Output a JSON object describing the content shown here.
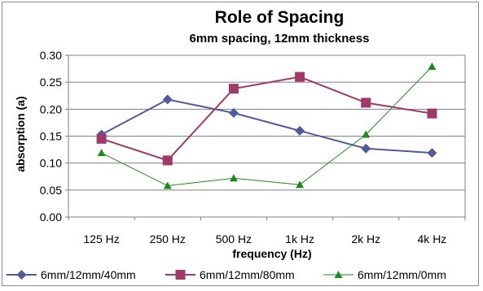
{
  "chart_data": {
    "type": "line",
    "title": "Role of Spacing",
    "subtitle": "6mm spacing, 12mm thickness",
    "xlabel": "frequency (Hz)",
    "ylabel": "absorption (a)",
    "categories": [
      "125 Hz",
      "250 Hz",
      "500 Hz",
      "1k Hz",
      "2k Hz",
      "4k  Hz"
    ],
    "ylim": [
      0,
      0.3
    ],
    "yticks": [
      "0.00",
      "0.05",
      "0.10",
      "0.15",
      "0.20",
      "0.25",
      "0.30"
    ],
    "grid": true,
    "legend_position": "bottom",
    "series": [
      {
        "name": "6mm/12mm/40mm",
        "color": "#4F5B9B",
        "marker": "diamond",
        "values": [
          0.153,
          0.218,
          0.193,
          0.16,
          0.127,
          0.119
        ]
      },
      {
        "name": "6mm/12mm/80mm",
        "color": "#A03868",
        "marker": "square",
        "values": [
          0.145,
          0.105,
          0.238,
          0.26,
          0.212,
          0.192
        ]
      },
      {
        "name": "6mm/12mm/0mm",
        "color": "#1E8A1E",
        "marker": "triangle",
        "values": [
          0.119,
          0.058,
          0.072,
          0.06,
          0.153,
          0.279
        ]
      }
    ]
  }
}
